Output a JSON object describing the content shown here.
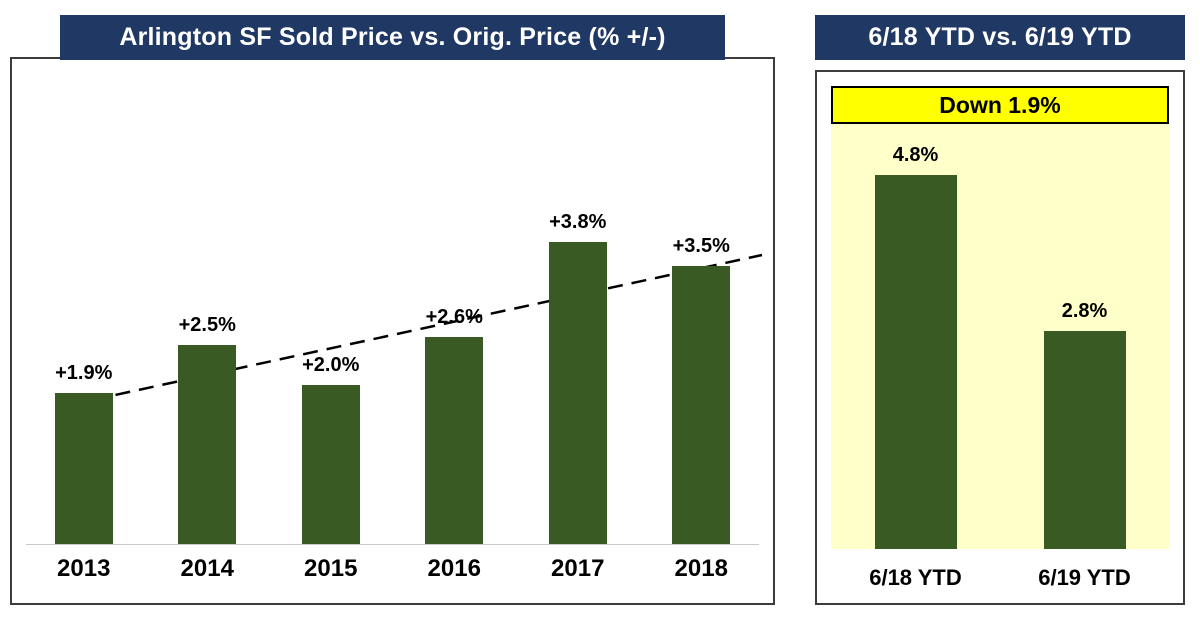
{
  "chart_data": [
    {
      "type": "bar",
      "title": "Arlington SF Sold Price vs. Orig. Price (% +/-)",
      "categories": [
        "2013",
        "2014",
        "2015",
        "2016",
        "2017",
        "2018"
      ],
      "values": [
        1.9,
        2.5,
        2.0,
        2.6,
        3.8,
        3.5
      ],
      "bar_labels": [
        "+1.9%",
        "+2.5%",
        "+2.0%",
        "+2.6%",
        "+3.8%",
        "+3.5%"
      ],
      "ylim": [
        0,
        6.1
      ],
      "grid": false,
      "legend": "none",
      "trendline": {
        "style": "dashed",
        "direction": "upward"
      }
    },
    {
      "type": "bar",
      "title": "6/18 YTD vs. 6/19 YTD",
      "banner": "Down 1.9%",
      "categories": [
        "6/18 YTD",
        "6/19 YTD"
      ],
      "values": [
        4.8,
        2.8
      ],
      "bar_labels": [
        "4.8%",
        "2.8%"
      ],
      "ylim": [
        0,
        5.9
      ],
      "grid": false,
      "legend": "none"
    }
  ],
  "colors": {
    "header_bg": "#1F3864",
    "header_text": "#FFFFFF",
    "bar_fill": "#3A5A23",
    "banner_bg": "#FFFF00",
    "banner_text": "#000000",
    "panel_bg": "#FFFFC9",
    "trendline": "#000000"
  }
}
